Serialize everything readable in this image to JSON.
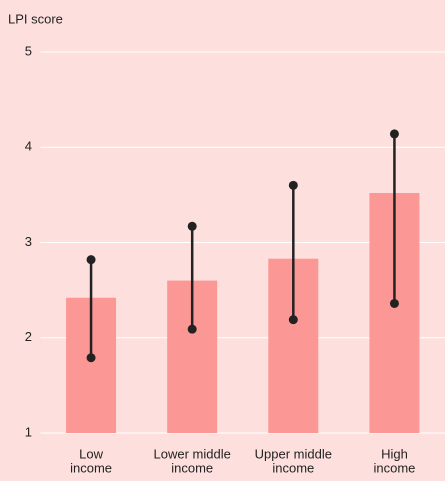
{
  "chart_data": {
    "type": "bar_range",
    "y_axis_label": "LPI score",
    "categories": [
      [
        "Low",
        "income"
      ],
      [
        "Lower middle",
        "income"
      ],
      [
        "Upper middle",
        "income"
      ],
      [
        "High",
        "income"
      ]
    ],
    "values": [
      2.42,
      2.6,
      2.83,
      3.52
    ],
    "range_min": [
      1.79,
      2.09,
      2.19,
      2.36
    ],
    "range_max": [
      2.82,
      3.17,
      3.6,
      4.14
    ],
    "color": "#fb9794",
    "range_color": "#222222",
    "background": "#fde0de",
    "ylim": [
      1,
      5
    ],
    "yticks": [
      1,
      2,
      3,
      4,
      5
    ],
    "grid": true
  }
}
